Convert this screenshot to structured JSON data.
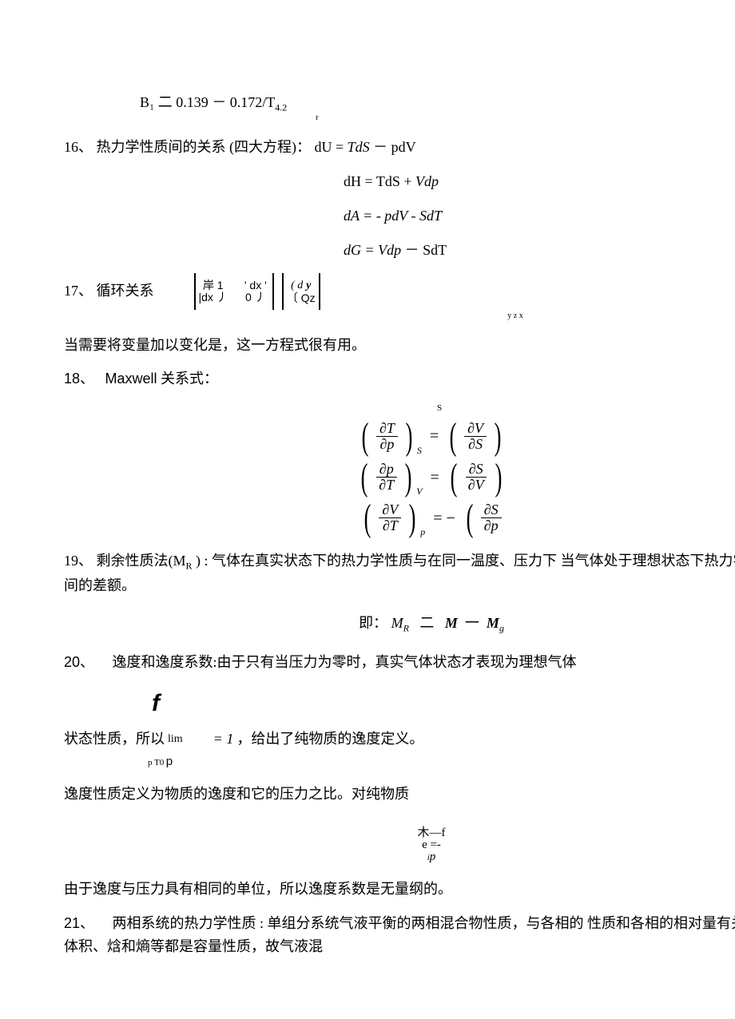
{
  "top_eq": {
    "text": "B₁ 二  0.139 －  0.172/T",
    "exp": "4.2",
    "sub_r": "r"
  },
  "item16": {
    "label": "16、",
    "lead": "热力学性质间的关系 (四大方程)：",
    "eq1": "dU = TdS  －  pdV",
    "eq2": "dH = TdS + Vdp",
    "eq3": "dA = - pdV - SdT",
    "eq4": "dG = Vdp  －  SdT"
  },
  "item17": {
    "label": "17、",
    "title": "循环关系",
    "cell1_top": "岸 1",
    "cell1_bot": "|dx 丿",
    "cell2_top": "' dx '",
    "cell2_bot": "0 丿",
    "cell2_sub": "y z x",
    "cell3_top": "( d y",
    "cell3_bot": "〔 Qz",
    "note": "当需要将变量加以变化是，这一方程式很有用。"
  },
  "item18": {
    "label": "18、",
    "title": "Maxwell 关系式：",
    "s": "S",
    "rows": [
      {
        "l_num": "∂T",
        "l_den": "∂p",
        "l_sub": "S",
        "sign": "=",
        "r_num": "∂V",
        "r_den": "∂S",
        "r_close": true
      },
      {
        "l_num": "∂p",
        "l_den": "∂T",
        "l_sub": "V",
        "sign": "=",
        "r_num": "∂S",
        "r_den": "∂V",
        "r_close": true
      },
      {
        "l_num": "∂V",
        "l_den": "∂T",
        "l_sub": "p",
        "sign": "= −",
        "r_num": "∂S",
        "r_den": "∂p",
        "r_close": false
      }
    ]
  },
  "item19": {
    "label": "19、",
    "title": "剩余性质法",
    "paren": "(M",
    "paren_sub": "R",
    "paren_end": ") :",
    "body1": "气体在真实状态下的热力学性质与在同一温度、压力下   当气体处于理想状态下热力学性质之间的差额。",
    "eq_pre": "即：",
    "eq_mr": "M",
    "eq_mr_sub": "R",
    "eq_mid": "二",
    "eq_m1": "M",
    "eq_dash": "一",
    "eq_m2": "M",
    "eq_m2_sub": "g"
  },
  "item20": {
    "label": "20、",
    "body1": "逸度和逸度系数:由于只有当压力为零时，真实气体状态才表现为理想气体",
    "body2_pre": "状态性质，所以",
    "lim": "lim",
    "eqone": "= 1",
    "body2_post": "，给出了纯物质的逸度定义。",
    "lim_sub": "p T0",
    "lim_p": "p",
    "body3": "逸度性质定义为物质的逸度和它的压力之比。对纯物质",
    "frac_top": "木—f",
    "frac_mid": "e =-",
    "frac_bot_i": "i",
    "frac_bot": "p",
    "body4": "由于逸度与压力具有相同的单位，所以逸度系数是无量纲的。"
  },
  "item21": {
    "label": "21、",
    "body": "两相系统的热力学性质 : 单组分系统气液平衡的两相混合物性质，与各相的    性质和各相的相对量有关。因为体积、焓和熵等都是容量性质，故气液混"
  },
  "colors": {
    "text": "#000000",
    "background": "#ffffff"
  }
}
